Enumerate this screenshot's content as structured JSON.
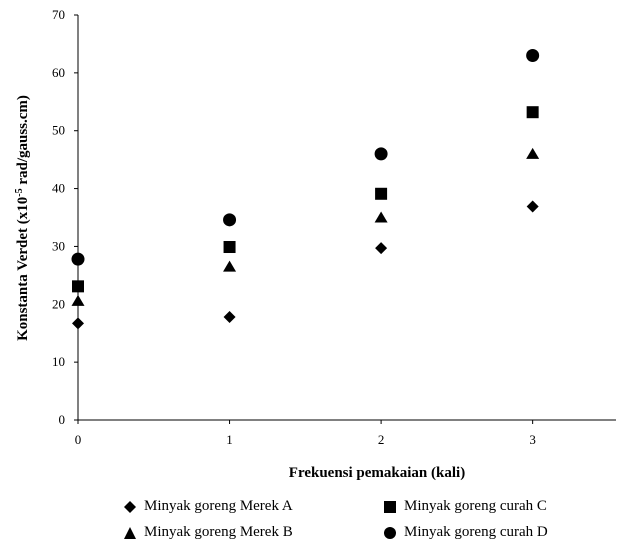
{
  "chart_data": {
    "type": "scatter",
    "title": "",
    "xlabel": "Frekuensi pemakaian (kali)",
    "ylabel": "Konstanta Verdet (x10",
    "ylabel_sup": "-5",
    "ylabel_unit": " rad/gauss.cm)",
    "xlim": [
      0,
      3.55
    ],
    "ylim": [
      0,
      70
    ],
    "xticks": [
      "0",
      "1",
      "2",
      "3"
    ],
    "yticks": [
      "0",
      "10",
      "20",
      "30",
      "40",
      "50",
      "60",
      "70"
    ],
    "grid": false,
    "legend_position": "bottom",
    "series": [
      {
        "name": "Minyak goreng Merek A",
        "marker": "diamond",
        "x": [
          0,
          1,
          2,
          3
        ],
        "y": [
          16.7,
          17.8,
          29.7,
          36.9
        ]
      },
      {
        "name": "Minyak goreng Merek B",
        "marker": "triangle",
        "x": [
          0,
          1,
          2,
          3
        ],
        "y": [
          20.6,
          26.5,
          35.0,
          46.0
        ]
      },
      {
        "name": "Minyak goreng curah C",
        "marker": "square",
        "x": [
          0,
          1,
          2,
          3
        ],
        "y": [
          23.1,
          29.9,
          39.1,
          53.2
        ]
      },
      {
        "name": "Minyak goreng curah D",
        "marker": "circle",
        "x": [
          0,
          1,
          2,
          3
        ],
        "y": [
          27.8,
          34.6,
          46.0,
          63.0
        ]
      }
    ]
  }
}
